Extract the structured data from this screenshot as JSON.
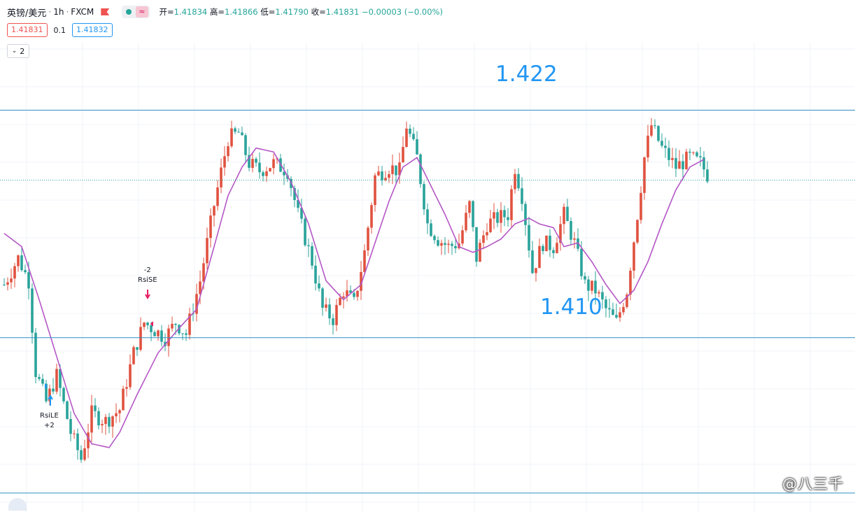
{
  "header": {
    "symbol": "英镑/美元",
    "interval": "1h",
    "exchange": "FXCM",
    "open_label": "开=",
    "open": "1.41834",
    "high_label": "高=",
    "high": "1.41866",
    "low_label": "低=",
    "low": "1.41790",
    "close_label": "收=",
    "close": "1.41831",
    "change": "−0.00003 (−0.00%)"
  },
  "quote": {
    "sell": "1.41831",
    "spread": "0.1",
    "buy": "1.41832"
  },
  "collapse_label": "2",
  "icons": {
    "flag": "flag-icon",
    "status_dot": "market-status-dot-icon",
    "wave": "wave-icon",
    "logo": "tradingview-logo-icon",
    "collapse": "chevron-down-icon"
  },
  "chart_data": {
    "type": "candlestick",
    "indicator": "moving-average",
    "y_range": [
      1.4008,
      1.4256
    ],
    "levels": [
      {
        "label": "1.422",
        "price": 1.422
      },
      {
        "label": "1.410",
        "price": 1.41
      }
    ],
    "extra_hlines": [
      1.4018
    ],
    "current_price": 1.41831,
    "signals": [
      {
        "index": 39,
        "text_top": "-2",
        "text_bottom": "RsiSE",
        "type": "short"
      },
      {
        "index": 12,
        "text_top": "RsiLE",
        "text_bottom": "+2",
        "type": "long"
      }
    ],
    "close_path": [
      [
        0,
        1.4128
      ],
      [
        4,
        1.4142
      ],
      [
        7,
        1.413
      ],
      [
        9,
        1.4082
      ],
      [
        12,
        1.4066
      ],
      [
        15,
        1.408
      ],
      [
        19,
        1.405
      ],
      [
        22,
        1.4036
      ],
      [
        25,
        1.406
      ],
      [
        29,
        1.4056
      ],
      [
        33,
        1.4062
      ],
      [
        37,
        1.4092
      ],
      [
        40,
        1.4108
      ],
      [
        43,
        1.4104
      ],
      [
        46,
        1.41
      ],
      [
        49,
        1.4108
      ],
      [
        52,
        1.4102
      ],
      [
        56,
        1.413
      ],
      [
        60,
        1.417
      ],
      [
        64,
        1.4205
      ],
      [
        67,
        1.4208
      ],
      [
        70,
        1.4192
      ],
      [
        73,
        1.4188
      ],
      [
        77,
        1.4192
      ],
      [
        81,
        1.4188
      ],
      [
        84,
        1.4165
      ],
      [
        88,
        1.414
      ],
      [
        91,
        1.4115
      ],
      [
        94,
        1.411
      ],
      [
        97,
        1.4125
      ],
      [
        100,
        1.4118
      ],
      [
        103,
        1.4145
      ],
      [
        106,
        1.4185
      ],
      [
        110,
        1.419
      ],
      [
        113,
        1.4188
      ],
      [
        115,
        1.4212
      ],
      [
        118,
        1.4195
      ],
      [
        121,
        1.416
      ],
      [
        124,
        1.4152
      ],
      [
        127,
        1.4148
      ],
      [
        130,
        1.415
      ],
      [
        133,
        1.417
      ],
      [
        135,
        1.4142
      ],
      [
        138,
        1.416
      ],
      [
        141,
        1.4163
      ],
      [
        144,
        1.4165
      ],
      [
        146,
        1.419
      ],
      [
        148,
        1.4175
      ],
      [
        151,
        1.4135
      ],
      [
        154,
        1.415
      ],
      [
        157,
        1.4148
      ],
      [
        160,
        1.4165
      ],
      [
        163,
        1.415
      ],
      [
        166,
        1.4128
      ],
      [
        169,
        1.4125
      ],
      [
        172,
        1.4115
      ],
      [
        175,
        1.4108
      ],
      [
        178,
        1.4125
      ],
      [
        181,
        1.4165
      ],
      [
        183,
        1.4195
      ],
      [
        185,
        1.4212
      ],
      [
        188,
        1.42
      ],
      [
        192,
        1.419
      ],
      [
        196,
        1.4195
      ],
      [
        199,
        1.4192
      ],
      [
        201,
        1.4186
      ]
    ],
    "ma_path": [
      [
        0,
        1.4155
      ],
      [
        5,
        1.4148
      ],
      [
        10,
        1.412
      ],
      [
        15,
        1.409
      ],
      [
        20,
        1.406
      ],
      [
        25,
        1.4044
      ],
      [
        30,
        1.4042
      ],
      [
        33,
        1.405
      ],
      [
        38,
        1.407
      ],
      [
        44,
        1.4092
      ],
      [
        50,
        1.4105
      ],
      [
        55,
        1.4115
      ],
      [
        60,
        1.4148
      ],
      [
        64,
        1.4175
      ],
      [
        68,
        1.419
      ],
      [
        72,
        1.42
      ],
      [
        77,
        1.4198
      ],
      [
        82,
        1.4182
      ],
      [
        87,
        1.416
      ],
      [
        92,
        1.413
      ],
      [
        97,
        1.412
      ],
      [
        102,
        1.4128
      ],
      [
        106,
        1.415
      ],
      [
        110,
        1.4172
      ],
      [
        114,
        1.419
      ],
      [
        118,
        1.4195
      ],
      [
        122,
        1.418
      ],
      [
        126,
        1.4165
      ],
      [
        130,
        1.4148
      ],
      [
        134,
        1.4145
      ],
      [
        138,
        1.4148
      ],
      [
        142,
        1.4152
      ],
      [
        146,
        1.416
      ],
      [
        150,
        1.4163
      ],
      [
        153,
        1.416
      ],
      [
        157,
        1.4158
      ],
      [
        160,
        1.4148
      ],
      [
        164,
        1.415
      ],
      [
        168,
        1.414
      ],
      [
        172,
        1.4128
      ],
      [
        176,
        1.4118
      ],
      [
        180,
        1.4125
      ],
      [
        184,
        1.414
      ],
      [
        188,
        1.416
      ],
      [
        192,
        1.4178
      ],
      [
        196,
        1.419
      ],
      [
        200,
        1.4194
      ]
    ]
  },
  "watermark": "@八三千"
}
